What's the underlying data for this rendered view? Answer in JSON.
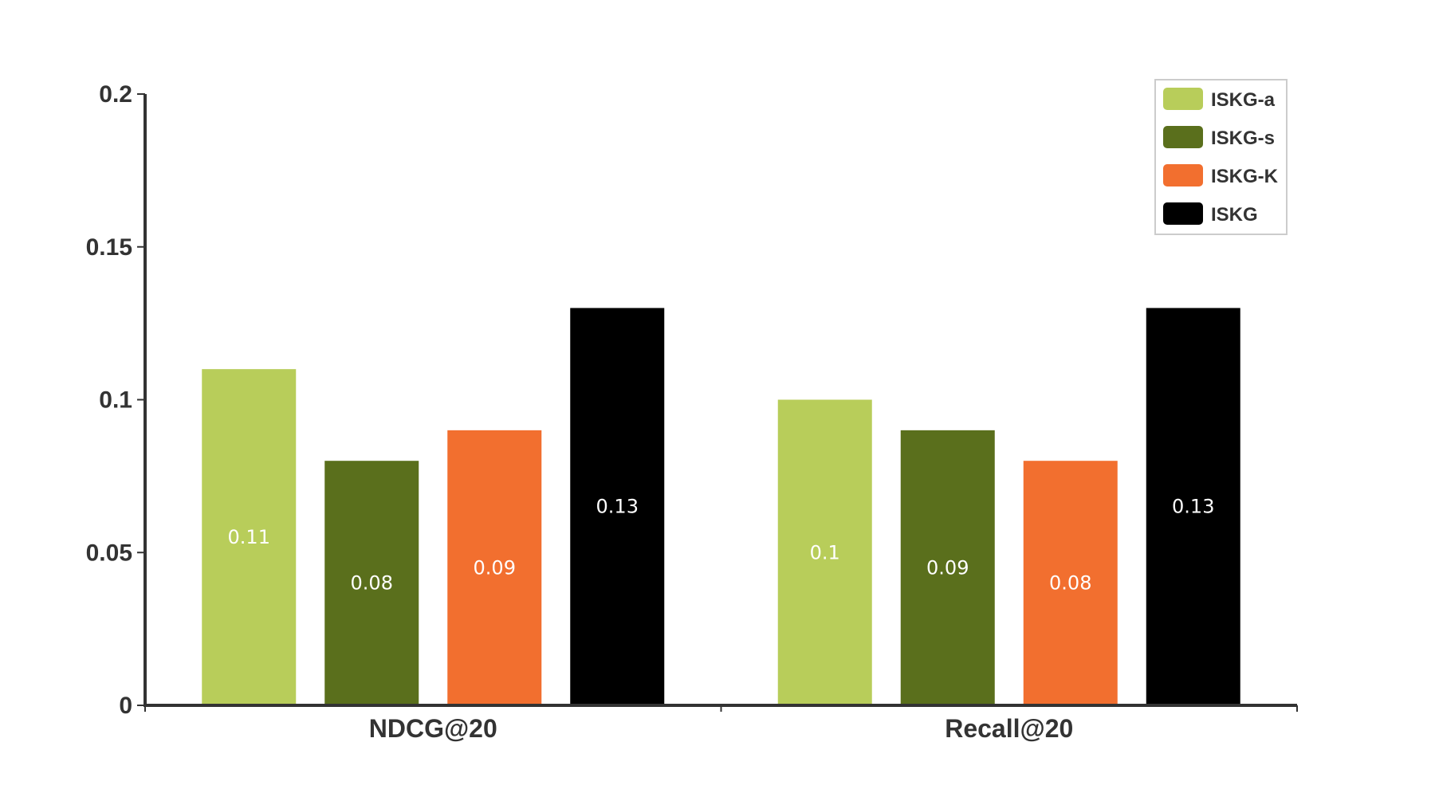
{
  "chart_data": {
    "type": "bar",
    "categories": [
      "NDCG@20",
      "Recall@20"
    ],
    "series": [
      {
        "name": "ISKG-a",
        "color": "#b8cd5a",
        "values": [
          0.11,
          0.1
        ]
      },
      {
        "name": "ISKG-s",
        "color": "#5a6f1c",
        "values": [
          0.08,
          0.09
        ]
      },
      {
        "name": "ISKG-K",
        "color": "#f26f2f",
        "values": [
          0.09,
          0.08
        ]
      },
      {
        "name": "ISKG",
        "color": "#000000",
        "values": [
          0.13,
          0.13
        ]
      }
    ],
    "data_labels": [
      [
        "0.11",
        "0.1"
      ],
      [
        "0.08",
        "0.09"
      ],
      [
        "0.09",
        "0.08"
      ],
      [
        "0.13",
        "0.13"
      ]
    ],
    "y_ticks": [
      "0",
      "0.05",
      "0.1",
      "0.15",
      "0.2"
    ],
    "ylim": [
      0,
      0.2
    ],
    "title": "",
    "xlabel": "",
    "ylabel": "",
    "legend_position": "top-right",
    "grid": false
  }
}
